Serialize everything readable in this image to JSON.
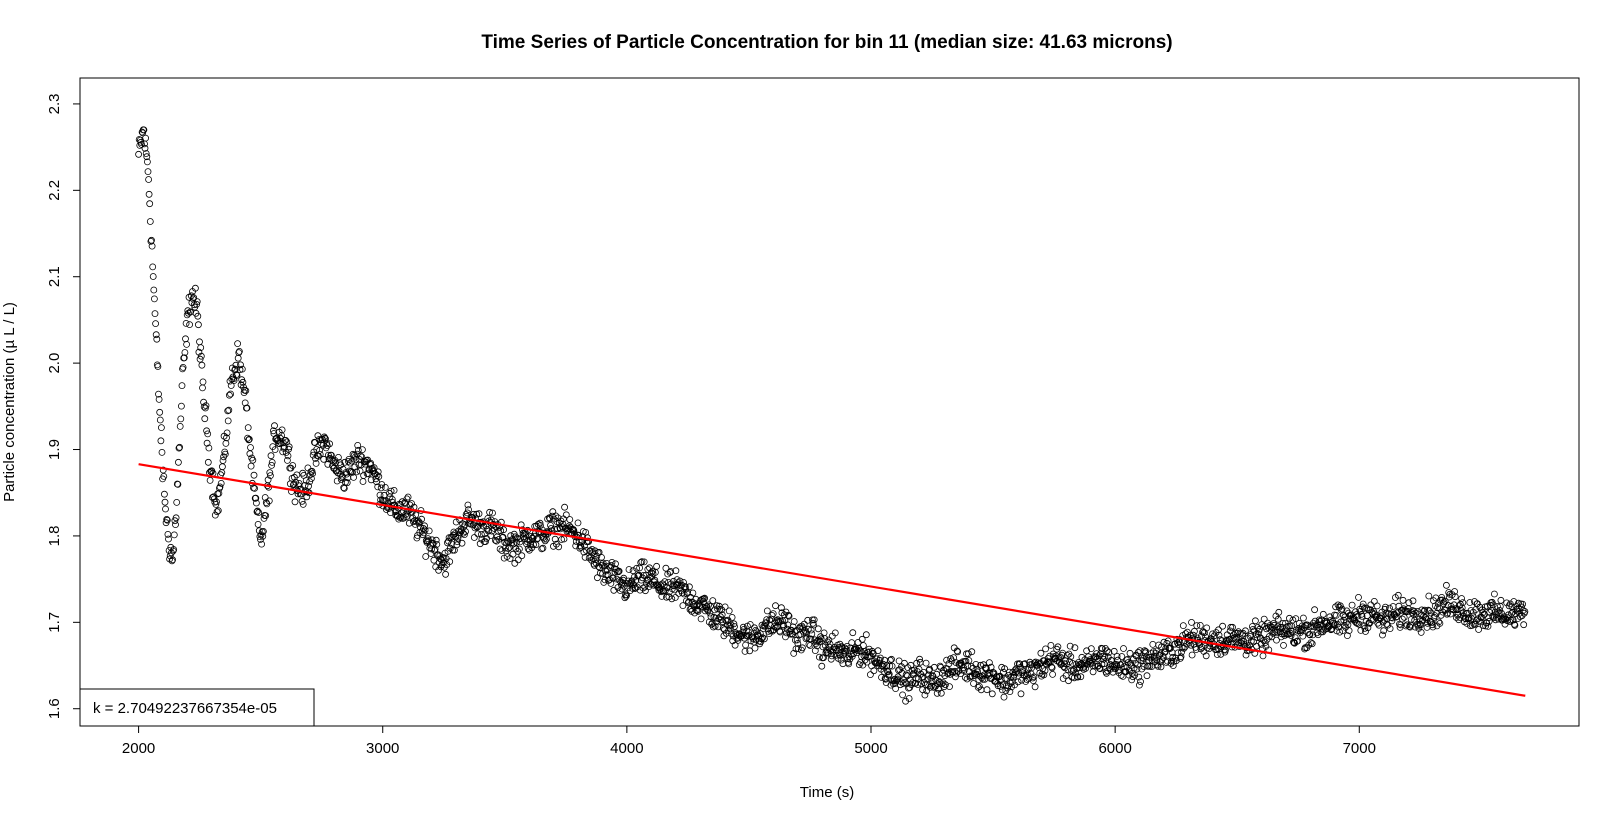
{
  "chart_data": {
    "type": "scatter",
    "title": "Time Series of Particle Concentration for bin 11 (median size: 41.63 microns)",
    "xlabel": "Time (s)",
    "ylabel": "Particle concentration (µ L / L)",
    "xlim": [
      1760,
      7900
    ],
    "ylim": [
      1.58,
      2.33
    ],
    "x_ticks": [
      2000,
      3000,
      4000,
      5000,
      6000,
      7000
    ],
    "x_tick_labels": [
      "2000",
      "3000",
      "4000",
      "5000",
      "6000",
      "7000"
    ],
    "y_ticks": [
      1.6,
      1.7,
      1.8,
      1.9,
      2.0,
      2.1,
      2.2,
      2.3
    ],
    "y_tick_labels": [
      "1.6",
      "1.7",
      "1.8",
      "1.9",
      "2.0",
      "2.1",
      "2.2",
      "2.3"
    ],
    "grid": false,
    "x_range": [
      2000,
      7680
    ],
    "series": [
      {
        "kind": "points",
        "marker": "open-circle",
        "color": "#000000",
        "trend": [
          [
            2000,
            2.24
          ],
          [
            2020,
            2.27
          ],
          [
            2040,
            2.22
          ],
          [
            2060,
            2.1
          ],
          [
            2080,
            1.98
          ],
          [
            2100,
            1.87
          ],
          [
            2120,
            1.8
          ],
          [
            2140,
            1.77
          ],
          [
            2160,
            1.86
          ],
          [
            2180,
            1.98
          ],
          [
            2200,
            2.05
          ],
          [
            2220,
            2.08
          ],
          [
            2240,
            2.06
          ],
          [
            2260,
            1.98
          ],
          [
            2290,
            1.89
          ],
          [
            2320,
            1.83
          ],
          [
            2350,
            1.89
          ],
          [
            2380,
            1.98
          ],
          [
            2410,
            2.01
          ],
          [
            2440,
            1.95
          ],
          [
            2470,
            1.86
          ],
          [
            2500,
            1.79
          ],
          [
            2530,
            1.85
          ],
          [
            2560,
            1.92
          ],
          [
            2600,
            1.91
          ],
          [
            2640,
            1.86
          ],
          [
            2680,
            1.85
          ],
          [
            2720,
            1.89
          ],
          [
            2760,
            1.91
          ],
          [
            2800,
            1.88
          ],
          [
            2850,
            1.87
          ],
          [
            2900,
            1.89
          ],
          [
            2950,
            1.88
          ],
          [
            3000,
            1.85
          ],
          [
            3050,
            1.83
          ],
          [
            3100,
            1.83
          ],
          [
            3150,
            1.81
          ],
          [
            3200,
            1.79
          ],
          [
            3250,
            1.77
          ],
          [
            3300,
            1.8
          ],
          [
            3350,
            1.82
          ],
          [
            3400,
            1.81
          ],
          [
            3450,
            1.81
          ],
          [
            3500,
            1.79
          ],
          [
            3550,
            1.79
          ],
          [
            3600,
            1.8
          ],
          [
            3650,
            1.8
          ],
          [
            3700,
            1.81
          ],
          [
            3750,
            1.81
          ],
          [
            3800,
            1.8
          ],
          [
            3850,
            1.78
          ],
          [
            3900,
            1.76
          ],
          [
            3950,
            1.75
          ],
          [
            4000,
            1.74
          ],
          [
            4050,
            1.75
          ],
          [
            4100,
            1.75
          ],
          [
            4150,
            1.74
          ],
          [
            4200,
            1.74
          ],
          [
            4250,
            1.73
          ],
          [
            4300,
            1.72
          ],
          [
            4350,
            1.71
          ],
          [
            4400,
            1.7
          ],
          [
            4450,
            1.69
          ],
          [
            4500,
            1.68
          ],
          [
            4550,
            1.69
          ],
          [
            4600,
            1.7
          ],
          [
            4650,
            1.7
          ],
          [
            4700,
            1.68
          ],
          [
            4750,
            1.69
          ],
          [
            4800,
            1.67
          ],
          [
            4850,
            1.67
          ],
          [
            4900,
            1.66
          ],
          [
            4950,
            1.67
          ],
          [
            5000,
            1.66
          ],
          [
            5050,
            1.65
          ],
          [
            5100,
            1.64
          ],
          [
            5150,
            1.63
          ],
          [
            5200,
            1.64
          ],
          [
            5250,
            1.63
          ],
          [
            5300,
            1.64
          ],
          [
            5350,
            1.65
          ],
          [
            5400,
            1.65
          ],
          [
            5450,
            1.64
          ],
          [
            5500,
            1.64
          ],
          [
            5550,
            1.63
          ],
          [
            5600,
            1.64
          ],
          [
            5650,
            1.64
          ],
          [
            5700,
            1.65
          ],
          [
            5750,
            1.66
          ],
          [
            5800,
            1.65
          ],
          [
            5850,
            1.65
          ],
          [
            5900,
            1.65
          ],
          [
            5950,
            1.66
          ],
          [
            6000,
            1.65
          ],
          [
            6050,
            1.65
          ],
          [
            6100,
            1.65
          ],
          [
            6150,
            1.66
          ],
          [
            6200,
            1.66
          ],
          [
            6250,
            1.67
          ],
          [
            6300,
            1.68
          ],
          [
            6350,
            1.68
          ],
          [
            6400,
            1.68
          ],
          [
            6450,
            1.68
          ],
          [
            6500,
            1.68
          ],
          [
            6550,
            1.68
          ],
          [
            6600,
            1.68
          ],
          [
            6650,
            1.69
          ],
          [
            6700,
            1.69
          ],
          [
            6750,
            1.69
          ],
          [
            6800,
            1.69
          ],
          [
            6850,
            1.7
          ],
          [
            6900,
            1.7
          ],
          [
            6950,
            1.7
          ],
          [
            7000,
            1.71
          ],
          [
            7050,
            1.71
          ],
          [
            7100,
            1.7
          ],
          [
            7150,
            1.71
          ],
          [
            7200,
            1.71
          ],
          [
            7250,
            1.71
          ],
          [
            7300,
            1.71
          ],
          [
            7350,
            1.72
          ],
          [
            7400,
            1.72
          ],
          [
            7450,
            1.71
          ],
          [
            7500,
            1.71
          ],
          [
            7550,
            1.71
          ],
          [
            7600,
            1.71
          ],
          [
            7680,
            1.71
          ]
        ]
      },
      {
        "kind": "line",
        "color": "#ff0000",
        "x": [
          2000,
          7680
        ],
        "y": [
          1.883,
          1.615
        ]
      }
    ],
    "legend": {
      "position": "bottom-left",
      "text": "k = 2.70492237667354e-05"
    }
  }
}
